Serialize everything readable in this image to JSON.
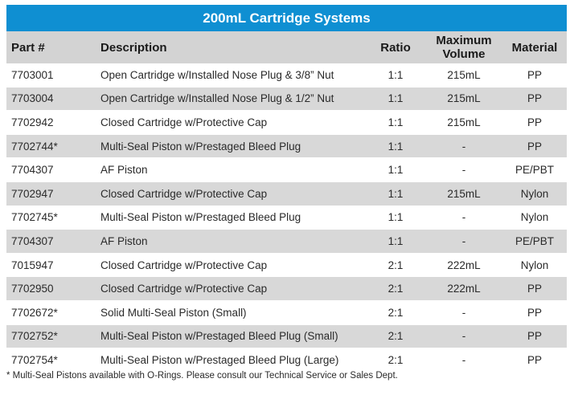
{
  "title": "200mL Cartridge Systems",
  "headers": {
    "part": "Part #",
    "description": "Description",
    "ratio": "Ratio",
    "volume_line1": "Maximum",
    "volume_line2": "Volume",
    "material": "Material"
  },
  "rows": [
    {
      "part": "7703001",
      "description": "Open Cartridge w/Installed Nose Plug & 3/8” Nut",
      "ratio": "1:1",
      "volume": "215mL",
      "material": "PP"
    },
    {
      "part": "7703004",
      "description": "Open Cartridge w/Installed Nose Plug & 1/2” Nut",
      "ratio": "1:1",
      "volume": "215mL",
      "material": "PP"
    },
    {
      "part": "7702942",
      "description": "Closed Cartridge w/Protective Cap",
      "ratio": "1:1",
      "volume": "215mL",
      "material": "PP"
    },
    {
      "part": "7702744*",
      "description": "Multi-Seal Piston w/Prestaged Bleed Plug",
      "ratio": "1:1",
      "volume": "-",
      "material": "PP"
    },
    {
      "part": "7704307",
      "description": "AF Piston",
      "ratio": "1:1",
      "volume": "-",
      "material": "PE/PBT"
    },
    {
      "part": "7702947",
      "description": "Closed Cartridge w/Protective Cap",
      "ratio": "1:1",
      "volume": "215mL",
      "material": "Nylon"
    },
    {
      "part": "7702745*",
      "description": "Multi-Seal Piston w/Prestaged Bleed Plug",
      "ratio": "1:1",
      "volume": "-",
      "material": "Nylon"
    },
    {
      "part": "7704307",
      "description": "AF Piston",
      "ratio": "1:1",
      "volume": "-",
      "material": "PE/PBT"
    },
    {
      "part": "7015947",
      "description": "Closed Cartridge w/Protective Cap",
      "ratio": "2:1",
      "volume": "222mL",
      "material": "Nylon"
    },
    {
      "part": "7702950",
      "description": "Closed Cartridge w/Protective Cap",
      "ratio": "2:1",
      "volume": "222mL",
      "material": "PP"
    },
    {
      "part": "7702672*",
      "description": "Solid Multi-Seal Piston (Small)",
      "ratio": "2:1",
      "volume": "-",
      "material": "PP"
    },
    {
      "part": "7702752*",
      "description": "Multi-Seal Piston w/Prestaged Bleed Plug (Small)",
      "ratio": "2:1",
      "volume": "-",
      "material": "PP"
    },
    {
      "part": "7702754*",
      "description": "Multi-Seal Piston w/Prestaged Bleed Plug (Large)",
      "ratio": "2:1",
      "volume": "-",
      "material": "PP"
    }
  ],
  "footnote": "* Multi-Seal Pistons available with O-Rings. Please consult our Technical Service or Sales Dept."
}
